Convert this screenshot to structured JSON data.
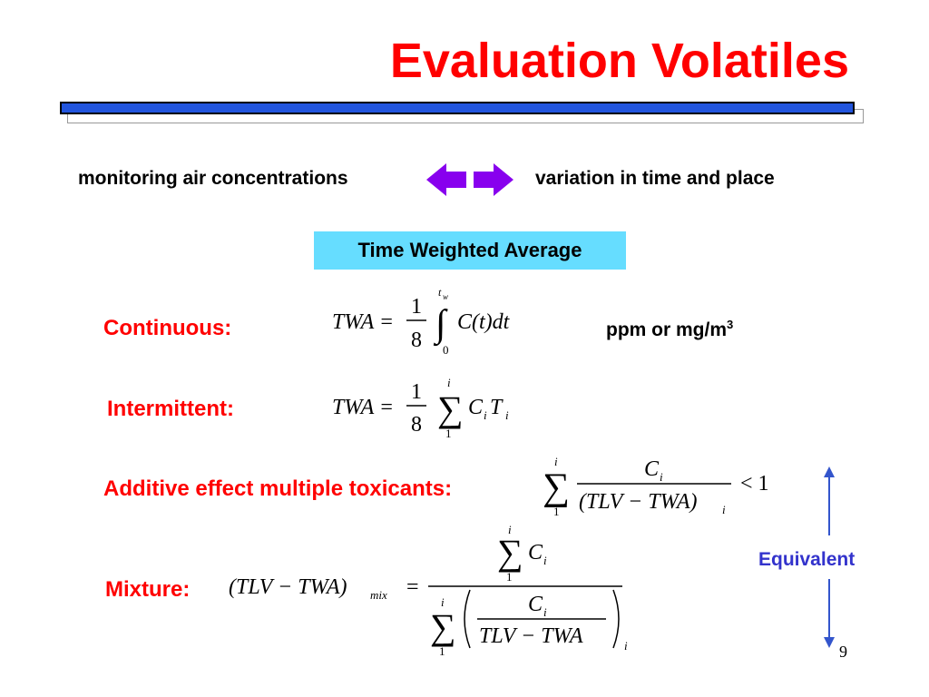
{
  "slide": {
    "title": "Evaluation Volatiles",
    "monitoring_text": "monitoring air concentrations",
    "variation_text": "variation in time and place",
    "twa_box_label": "Time Weighted Average",
    "labels": {
      "continuous": "Continuous:",
      "intermittent": "Intermittent:",
      "additive": "Additive effect multiple toxicants:",
      "mixture": "Mixture:"
    },
    "units": {
      "text": "ppm  or  mg/m",
      "superscript": "3"
    },
    "equivalent_label": "Equivalent",
    "page_number": "9",
    "formulas": {
      "continuous": {
        "lhs": "TWA =",
        "frac_num": "1",
        "frac_den": "8",
        "upper": "t",
        "upper_sub": "w",
        "lower": "0",
        "integrand": "C(t)dt"
      },
      "intermittent": {
        "lhs": "TWA =",
        "frac_num": "1",
        "frac_den": "8",
        "upper": "i",
        "lower": "1",
        "term_c": "C",
        "term_c_sub": "i",
        "term_t": "T",
        "term_t_sub": "i"
      },
      "additive": {
        "upper": "i",
        "lower": "1",
        "num": "C",
        "num_sub": "i",
        "den": "(TLV − TWA)",
        "den_sub": "i",
        "rhs": "< 1"
      },
      "mixture": {
        "lhs": "(TLV − TWA)",
        "lhs_sub": "mix",
        "equals": "=",
        "top_upper": "i",
        "top_lower": "1",
        "top_term": "C",
        "top_term_sub": "i",
        "bot_upper": "i",
        "bot_lower": "1",
        "inner_num": "C",
        "inner_num_sub": "i",
        "inner_den": "TLV − TWA",
        "outer_sub": "i"
      }
    },
    "colors": {
      "title": "#ff0000",
      "title_bar": "#2255dd",
      "arrow": "#8800ee",
      "twa_box": "#66ddff",
      "labels": "#ff0000",
      "equivalent": "#3333cc",
      "equivalent_arrow": "#3355cc"
    },
    "icons": {
      "double_arrow": "left-right-arrow-icon",
      "vertical_arrow": "up-down-arrow-icon"
    }
  }
}
